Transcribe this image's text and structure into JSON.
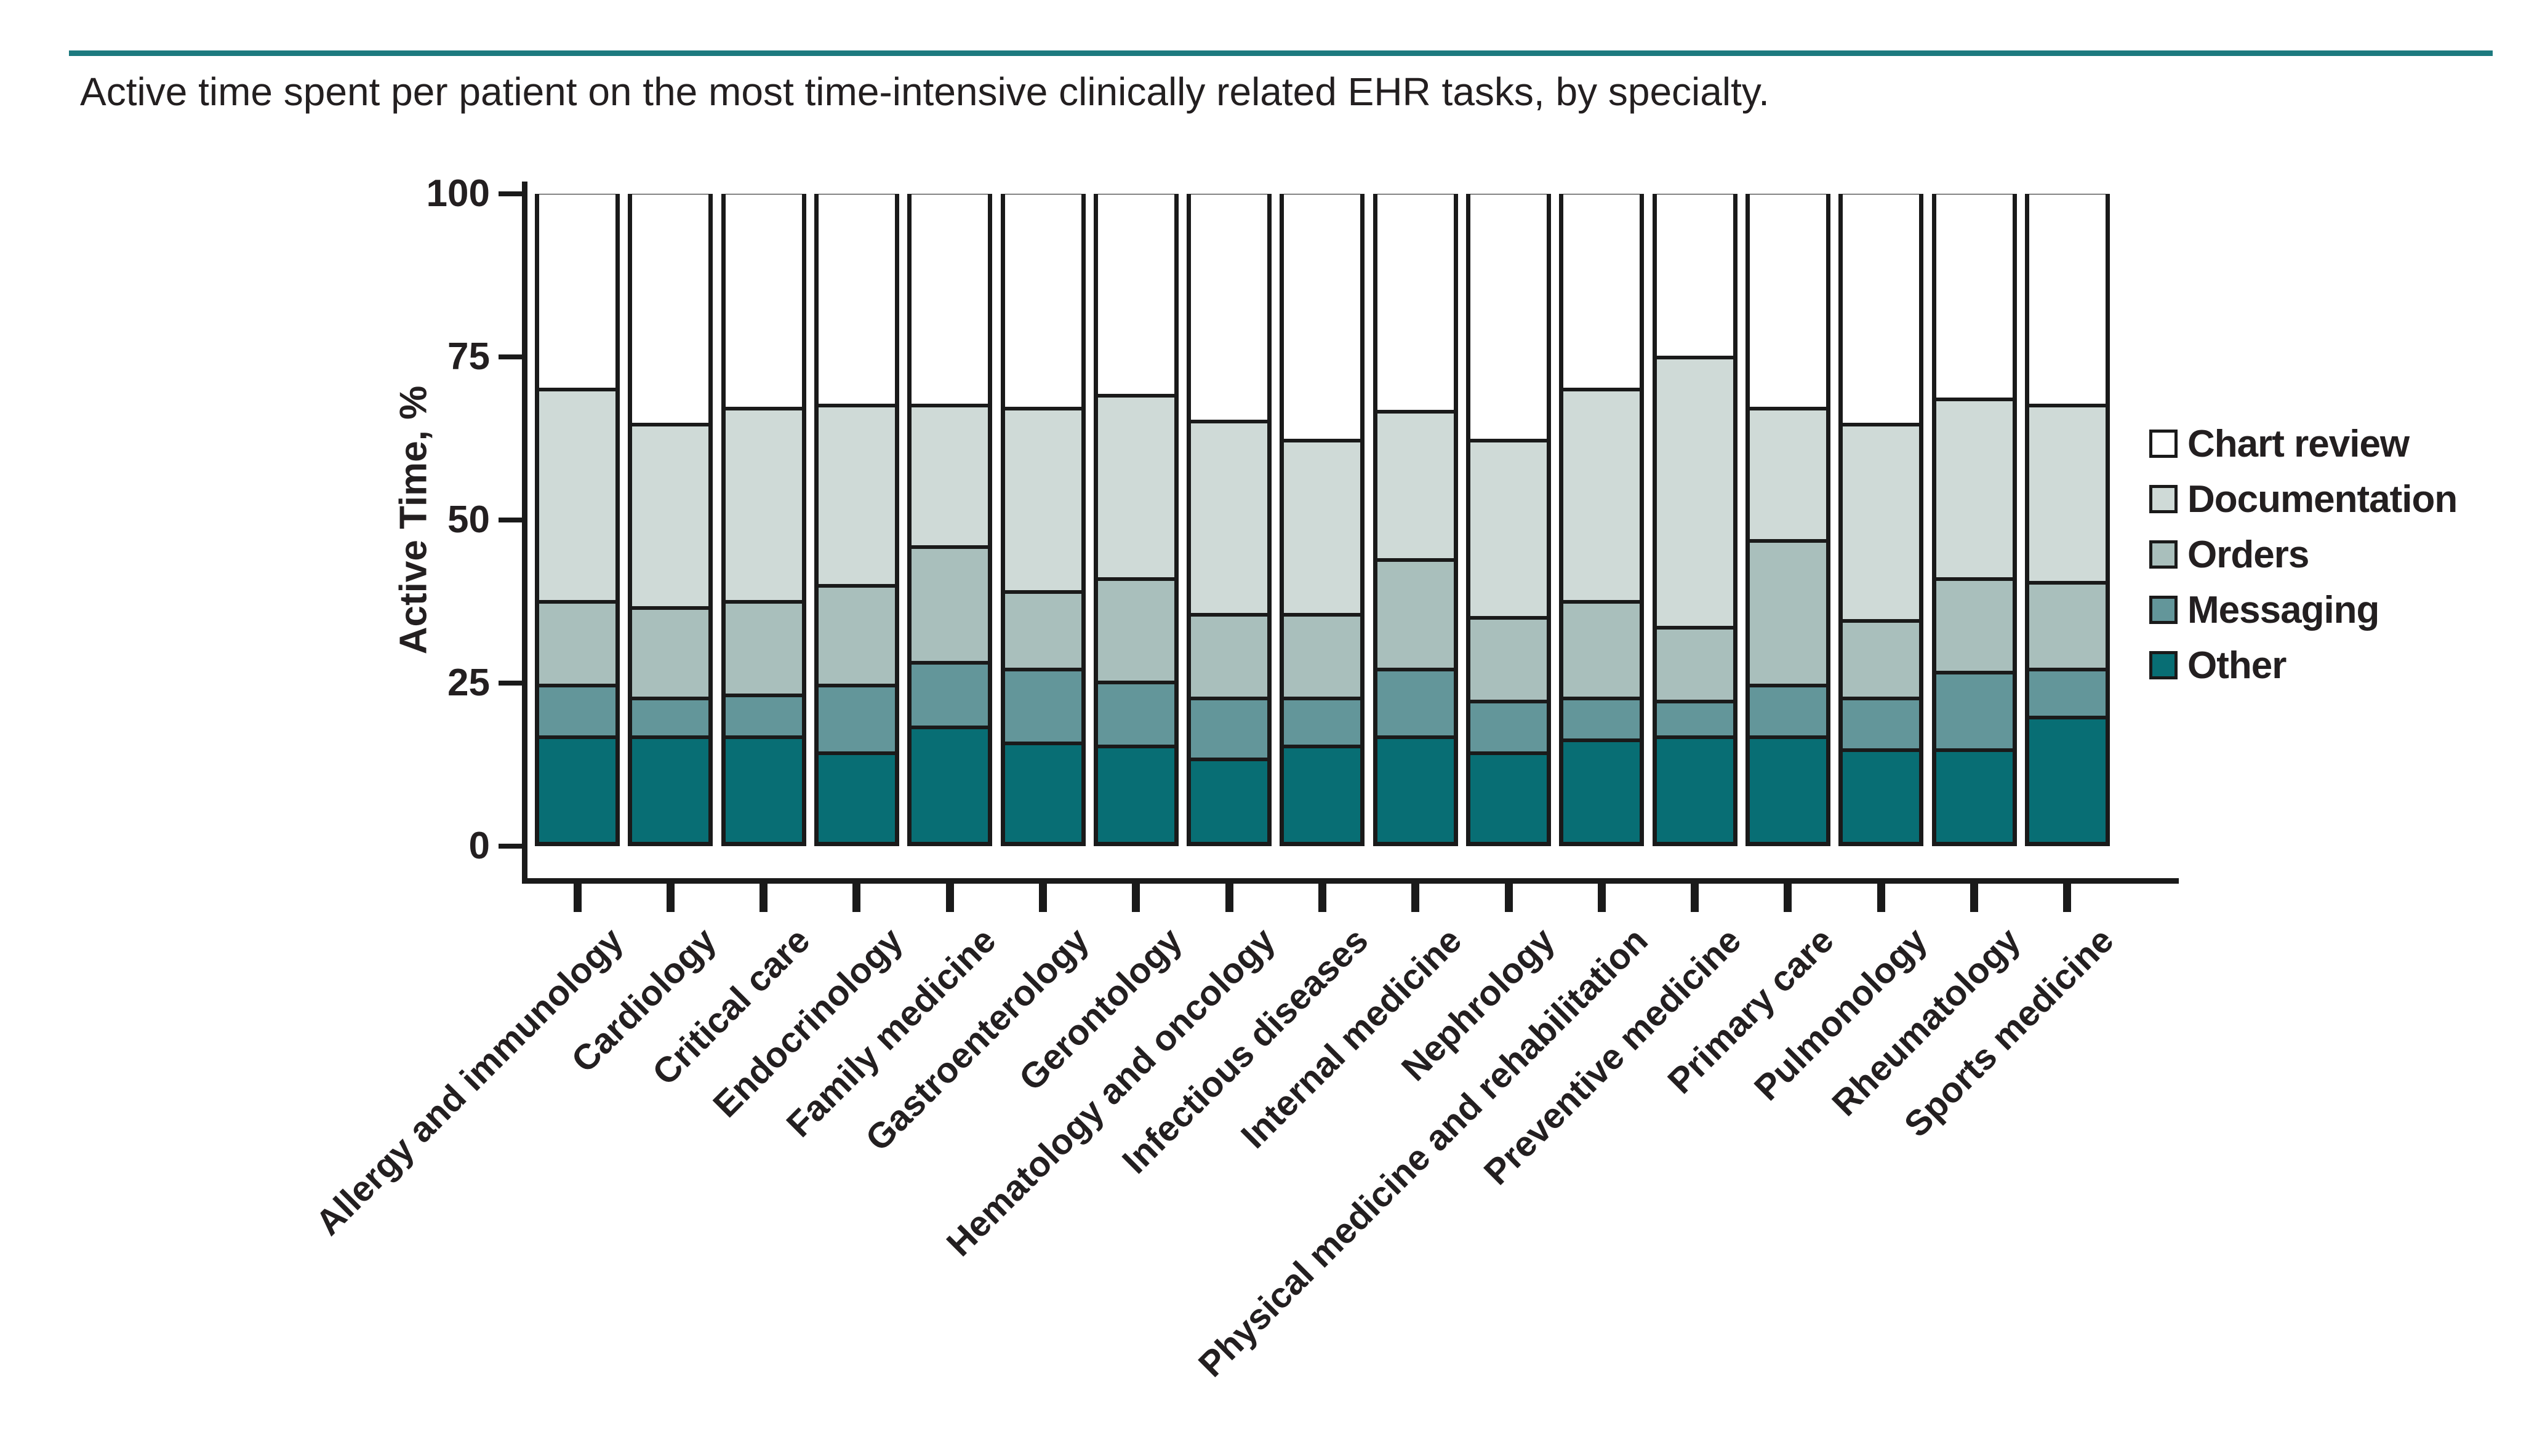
{
  "figure": {
    "title": "Active time spent per patient on the most time-intensive clinically related EHR tasks, by specialty.",
    "accent_rule_color": "#1d7a7f"
  },
  "chart_data": {
    "type": "bar",
    "stacked": true,
    "title": "Active time spent per patient on the most time-intensive clinically related EHR tasks, by specialty.",
    "xlabel": "",
    "ylabel": "Active Time, %",
    "ylim": [
      0,
      100
    ],
    "yticks": [
      0,
      25,
      50,
      75,
      100
    ],
    "grid": false,
    "legend_position": "right",
    "bar_outline_color": "#1a1a1a",
    "categories": [
      "Allergy and immunology",
      "Cardiology",
      "Critical care",
      "Endocrinology",
      "Family medicine",
      "Gastroenterology",
      "Gerontology",
      "Hematology and oncology",
      "Infectious diseases",
      "Internal medicine",
      "Nephrology",
      "Physical medicine and rehabilitation",
      "Preventive medicine",
      "Primary care",
      "Pulmonology",
      "Rheumatology",
      "Sports medicine"
    ],
    "series": [
      {
        "name": "Chart review",
        "color": "#ffffff",
        "values": [
          30,
          35.5,
          33,
          32.5,
          32.5,
          33,
          31,
          35,
          38,
          33.5,
          38,
          30,
          25,
          33,
          35.5,
          31.5,
          32.5
        ]
      },
      {
        "name": "Documentation",
        "color": "#cfdad7",
        "values": [
          33,
          28.5,
          30,
          28,
          22,
          28.5,
          28.5,
          30,
          27,
          23,
          27.5,
          33,
          42,
          20.5,
          30.5,
          28,
          27.5
        ]
      },
      {
        "name": "Orders",
        "color": "#a9bfbc",
        "values": [
          13,
          14,
          14.5,
          15.5,
          18,
          12,
          16,
          13,
          13,
          17,
          13,
          15,
          11.5,
          22.5,
          12,
          14.5,
          13.5
        ]
      },
      {
        "name": "Messaging",
        "color": "#63969a",
        "values": [
          8,
          6,
          6.5,
          10.5,
          10,
          11.5,
          10,
          9.5,
          7.5,
          10.5,
          8,
          6.5,
          5.5,
          8,
          8,
          12,
          7.5
        ]
      },
      {
        "name": "Other",
        "color": "#086e74",
        "values": [
          16,
          16,
          16,
          13.5,
          17.5,
          15,
          14.5,
          12.5,
          14.5,
          16,
          13.5,
          15.5,
          16,
          16,
          14,
          14,
          19
        ]
      }
    ]
  }
}
